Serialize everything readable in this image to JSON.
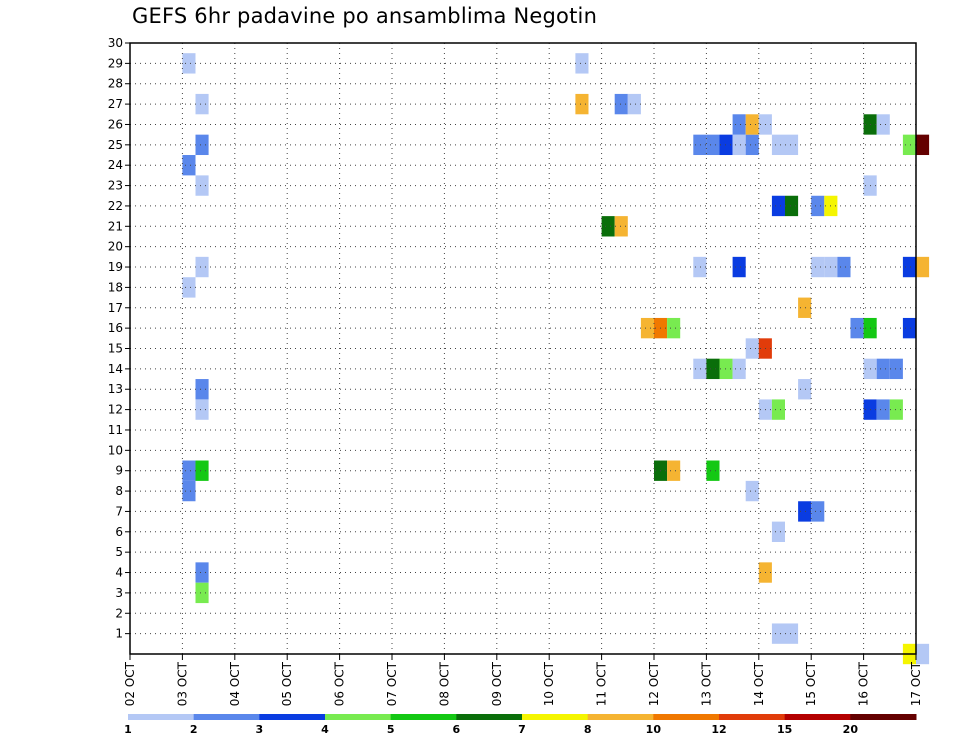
{
  "chart_data": {
    "type": "heatmap",
    "title": "GEFS 6hr padavine po ansamblima Negotin",
    "x_tick_labels": [
      "02 OCT",
      "03 OCT",
      "04 OCT",
      "05 OCT",
      "06 OCT",
      "07 OCT",
      "08 OCT",
      "09 OCT",
      "10 OCT",
      "11 OCT",
      "12 OCT",
      "13 OCT",
      "14 OCT",
      "15 OCT",
      "16 OCT",
      "17 OCT"
    ],
    "y_tick_labels": [
      "1",
      "2",
      "3",
      "4",
      "5",
      "6",
      "7",
      "8",
      "9",
      "10",
      "11",
      "12",
      "13",
      "14",
      "15",
      "16",
      "17",
      "18",
      "19",
      "20",
      "21",
      "22",
      "23",
      "24",
      "25",
      "26",
      "27",
      "28",
      "29",
      "30"
    ],
    "ylim": [
      0,
      30
    ],
    "steps_per_day": 4,
    "grid": "dotted",
    "colorbar": {
      "labels": [
        "1",
        "2",
        "3",
        "4",
        "5",
        "6",
        "7",
        "8",
        "10",
        "12",
        "15",
        "20"
      ],
      "colors": [
        "#b4c8f5",
        "#5a87eb",
        "#0a3ce1",
        "#78eb50",
        "#14c814",
        "#0a6e0a",
        "#f5f500",
        "#f5b432",
        "#f07800",
        "#e13c0a",
        "#b40000",
        "#640000"
      ]
    },
    "cells": [
      {
        "member": 29,
        "step": 4,
        "bin": 0
      },
      {
        "member": 27,
        "step": 5,
        "bin": 0
      },
      {
        "member": 25,
        "step": 5,
        "bin": 1
      },
      {
        "member": 24,
        "step": 4,
        "bin": 1
      },
      {
        "member": 23,
        "step": 5,
        "bin": 0
      },
      {
        "member": 19,
        "step": 5,
        "bin": 0
      },
      {
        "member": 18,
        "step": 4,
        "bin": 0
      },
      {
        "member": 13,
        "step": 5,
        "bin": 1
      },
      {
        "member": 12,
        "step": 5,
        "bin": 0
      },
      {
        "member": 9,
        "step": 4,
        "bin": 1
      },
      {
        "member": 9,
        "step": 5,
        "bin": 4
      },
      {
        "member": 8,
        "step": 4,
        "bin": 1
      },
      {
        "member": 4,
        "step": 5,
        "bin": 1
      },
      {
        "member": 3,
        "step": 5,
        "bin": 3
      },
      {
        "member": 29,
        "step": 34,
        "bin": 0
      },
      {
        "member": 27,
        "step": 34,
        "bin": 7
      },
      {
        "member": 27,
        "step": 37,
        "bin": 1
      },
      {
        "member": 27,
        "step": 38,
        "bin": 0
      },
      {
        "member": 21,
        "step": 36,
        "bin": 5
      },
      {
        "member": 21,
        "step": 37,
        "bin": 7
      },
      {
        "member": 16,
        "step": 39,
        "bin": 7
      },
      {
        "member": 16,
        "step": 40,
        "bin": 8
      },
      {
        "member": 16,
        "step": 41,
        "bin": 3
      },
      {
        "member": 9,
        "step": 40,
        "bin": 5
      },
      {
        "member": 9,
        "step": 41,
        "bin": 7
      },
      {
        "member": 19,
        "step": 43,
        "bin": 0
      },
      {
        "member": 9,
        "step": 44,
        "bin": 4
      },
      {
        "member": 25,
        "step": 43,
        "bin": 1
      },
      {
        "member": 25,
        "step": 44,
        "bin": 1
      },
      {
        "member": 25,
        "step": 45,
        "bin": 2
      },
      {
        "member": 25,
        "step": 46,
        "bin": 0
      },
      {
        "member": 25,
        "step": 47,
        "bin": 1
      },
      {
        "member": 26,
        "step": 46,
        "bin": 1
      },
      {
        "member": 26,
        "step": 47,
        "bin": 7
      },
      {
        "member": 26,
        "step": 48,
        "bin": 0
      },
      {
        "member": 19,
        "step": 46,
        "bin": 2
      },
      {
        "member": 14,
        "step": 43,
        "bin": 0
      },
      {
        "member": 14,
        "step": 44,
        "bin": 5
      },
      {
        "member": 14,
        "step": 45,
        "bin": 3
      },
      {
        "member": 14,
        "step": 46,
        "bin": 0
      },
      {
        "member": 15,
        "step": 47,
        "bin": 0
      },
      {
        "member": 15,
        "step": 48,
        "bin": 9
      },
      {
        "member": 8,
        "step": 47,
        "bin": 0
      },
      {
        "member": 4,
        "step": 48,
        "bin": 7
      },
      {
        "member": 12,
        "step": 48,
        "bin": 0
      },
      {
        "member": 12,
        "step": 49,
        "bin": 3
      },
      {
        "member": 6,
        "step": 49,
        "bin": 0
      },
      {
        "member": 1,
        "step": 49,
        "bin": 0
      },
      {
        "member": 1,
        "step": 50,
        "bin": 0
      },
      {
        "member": 25,
        "step": 49,
        "bin": 0
      },
      {
        "member": 25,
        "step": 50,
        "bin": 0
      },
      {
        "member": 22,
        "step": 49,
        "bin": 2
      },
      {
        "member": 22,
        "step": 50,
        "bin": 5
      },
      {
        "member": 17,
        "step": 51,
        "bin": 7
      },
      {
        "member": 13,
        "step": 51,
        "bin": 0
      },
      {
        "member": 7,
        "step": 51,
        "bin": 2
      },
      {
        "member": 7,
        "step": 52,
        "bin": 1
      },
      {
        "member": 22,
        "step": 52,
        "bin": 1
      },
      {
        "member": 22,
        "step": 53,
        "bin": 6
      },
      {
        "member": 19,
        "step": 52,
        "bin": 0
      },
      {
        "member": 19,
        "step": 53,
        "bin": 0
      },
      {
        "member": 19,
        "step": 54,
        "bin": 1
      },
      {
        "member": 16,
        "step": 55,
        "bin": 1
      },
      {
        "member": 16,
        "step": 56,
        "bin": 4
      },
      {
        "member": 16,
        "step": 59,
        "bin": 2
      },
      {
        "member": 26,
        "step": 56,
        "bin": 5
      },
      {
        "member": 26,
        "step": 57,
        "bin": 0
      },
      {
        "member": 25,
        "step": 59,
        "bin": 3
      },
      {
        "member": 25,
        "step": 60,
        "bin": 11
      },
      {
        "member": 23,
        "step": 56,
        "bin": 0
      },
      {
        "member": 19,
        "step": 59,
        "bin": 2
      },
      {
        "member": 19,
        "step": 60,
        "bin": 7
      },
      {
        "member": 14,
        "step": 56,
        "bin": 0
      },
      {
        "member": 14,
        "step": 57,
        "bin": 1
      },
      {
        "member": 14,
        "step": 58,
        "bin": 1
      },
      {
        "member": 12,
        "step": 56,
        "bin": 2
      },
      {
        "member": 12,
        "step": 57,
        "bin": 1
      },
      {
        "member": 12,
        "step": 58,
        "bin": 3
      },
      {
        "member": 0,
        "step": 59,
        "bin": 6
      },
      {
        "member": 0,
        "step": 60,
        "bin": 0
      }
    ]
  }
}
